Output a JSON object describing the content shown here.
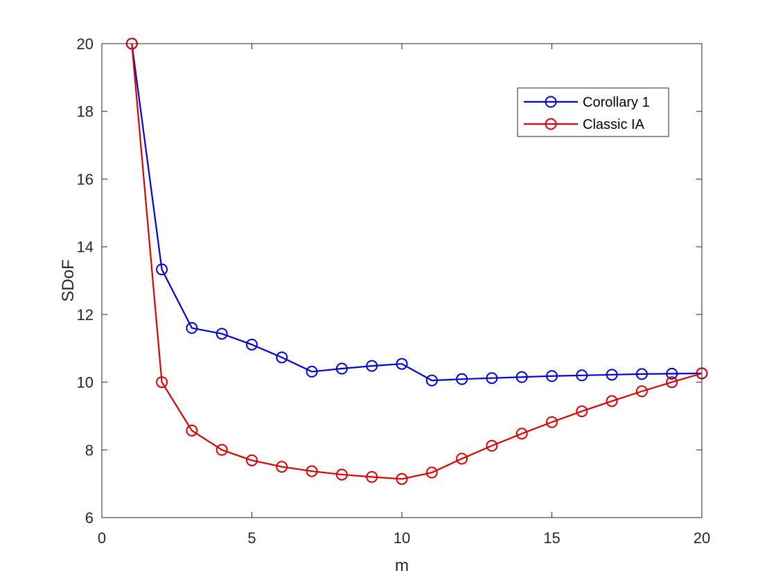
{
  "chart_data": {
    "type": "line",
    "xlabel": "m",
    "ylabel": "SDoF",
    "xlim": [
      0,
      20
    ],
    "ylim": [
      6,
      20
    ],
    "xticks": [
      0,
      5,
      10,
      15,
      20
    ],
    "yticks": [
      6,
      8,
      10,
      12,
      14,
      16,
      18,
      20
    ],
    "grid": false,
    "legend_position": "top-right",
    "x": [
      1,
      2,
      3,
      4,
      5,
      6,
      7,
      8,
      9,
      10,
      11,
      12,
      13,
      14,
      15,
      16,
      17,
      18,
      19,
      20
    ],
    "series": [
      {
        "name": "Corollary 1",
        "color": "#0000dd",
        "marker": "circle",
        "values": [
          20.0,
          13.33,
          11.6,
          11.43,
          11.11,
          10.73,
          10.31,
          10.4,
          10.48,
          10.54,
          10.05,
          10.09,
          10.12,
          10.15,
          10.18,
          10.2,
          10.22,
          10.24,
          10.25,
          10.26
        ]
      },
      {
        "name": "Classic IA",
        "color": "#dd0000",
        "marker": "circle",
        "values": [
          20.0,
          10.0,
          8.57,
          8.0,
          7.69,
          7.5,
          7.37,
          7.27,
          7.2,
          7.14,
          7.33,
          7.74,
          8.12,
          8.48,
          8.82,
          9.14,
          9.44,
          9.73,
          10.0,
          10.26
        ]
      }
    ]
  }
}
